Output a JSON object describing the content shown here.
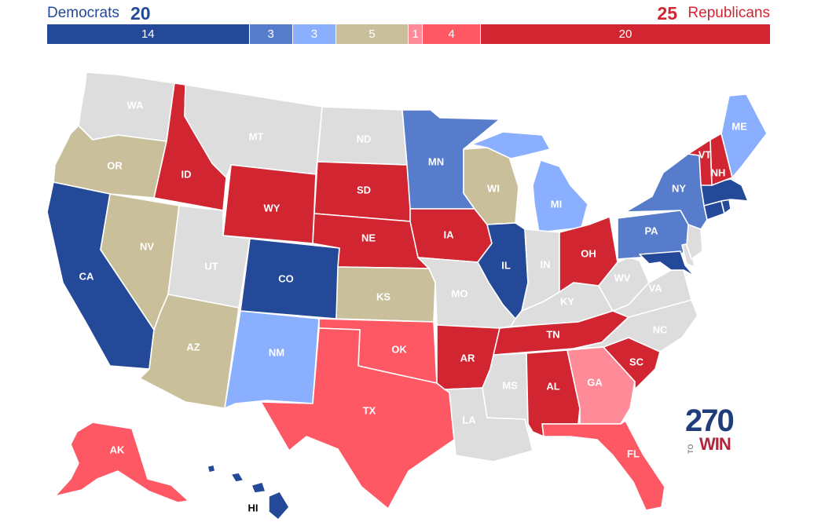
{
  "header": {
    "dem_label": "Democrats",
    "dem_total": "20",
    "rep_total": "25",
    "rep_label": "Republicans"
  },
  "bar": [
    {
      "value": "14",
      "count": 14,
      "color": "#244999"
    },
    {
      "value": "3",
      "count": 3,
      "color": "#577ccc"
    },
    {
      "value": "3",
      "count": 3,
      "color": "#8aafff"
    },
    {
      "value": "5",
      "count": 5,
      "color": "#c9c09b"
    },
    {
      "value": "1",
      "count": 1,
      "color": "#ff8b98"
    },
    {
      "value": "4",
      "count": 4,
      "color": "#ff5865"
    },
    {
      "value": "20",
      "count": 20,
      "color": "#d22532"
    }
  ],
  "colors": {
    "safe_dem": "#244999",
    "likely_dem": "#577ccc",
    "lean_dem": "#8aafff",
    "tossup": "#c9c09b",
    "tilt_rep": "#ff8b98",
    "lean_rep": "#ff5865",
    "safe_rep": "#d22532",
    "no_race": "#dddddd"
  },
  "states": {
    "WA": "WA",
    "OR": "OR",
    "CA": "CA",
    "ID": "ID",
    "NV": "NV",
    "MT": "MT",
    "WY": "WY",
    "UT": "UT",
    "AZ": "AZ",
    "CO": "CO",
    "NM": "NM",
    "ND": "ND",
    "SD": "SD",
    "NE": "NE",
    "KS": "KS",
    "OK": "OK",
    "TX": "TX",
    "MN": "MN",
    "IA": "IA",
    "MO": "MO",
    "AR": "AR",
    "LA": "LA",
    "WI": "WI",
    "IL": "IL",
    "MI": "MI",
    "IN": "IN",
    "OH": "OH",
    "KY": "KY",
    "TN": "TN",
    "MS": "MS",
    "AL": "AL",
    "GA": "GA",
    "FL": "FL",
    "SC": "SC",
    "NC": "NC",
    "VA": "VA",
    "WV": "WV",
    "PA": "PA",
    "NY": "NY",
    "VT": "VT",
    "NH": "NH",
    "ME": "ME",
    "AK": "AK",
    "HI": "HI"
  },
  "logo": {
    "number": "270",
    "to": "TO",
    "win": "WIN"
  }
}
